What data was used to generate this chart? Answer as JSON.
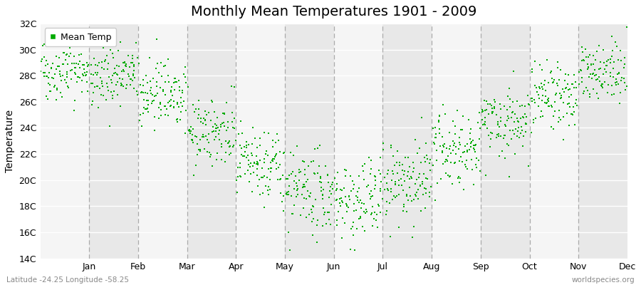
{
  "title": "Monthly Mean Temperatures 1901 - 2009",
  "ylabel": "Temperature",
  "subtitle": "Latitude -24.25 Longitude -58.25",
  "watermark": "worldspecies.org",
  "legend_label": "Mean Temp",
  "ylim": [
    14,
    32
  ],
  "ytick_labels": [
    "14C",
    "16C",
    "18C",
    "20C",
    "22C",
    "24C",
    "26C",
    "28C",
    "30C",
    "32C"
  ],
  "ytick_values": [
    14,
    16,
    18,
    20,
    22,
    24,
    26,
    28,
    30,
    32
  ],
  "month_names": [
    "Jan",
    "Feb",
    "Mar",
    "Apr",
    "May",
    "Jun",
    "Jul",
    "Aug",
    "Sep",
    "Oct",
    "Nov",
    "Dec"
  ],
  "marker_color": "#00aa00",
  "marker_size": 3,
  "bg_light": "#f5f5f5",
  "bg_dark": "#e8e8e8",
  "dashed_color": "#aaaaaa",
  "monthly_means": [
    28.5,
    28.0,
    26.8,
    23.8,
    21.0,
    19.0,
    18.5,
    20.0,
    22.5,
    24.5,
    26.5,
    28.2
  ],
  "monthly_stds": [
    1.2,
    1.2,
    1.3,
    1.3,
    1.4,
    1.5,
    1.5,
    1.5,
    1.5,
    1.4,
    1.3,
    1.2
  ],
  "n_years": 109,
  "seed": 42,
  "title_fontsize": 14,
  "axis_fontsize": 9,
  "legend_fontsize": 9
}
